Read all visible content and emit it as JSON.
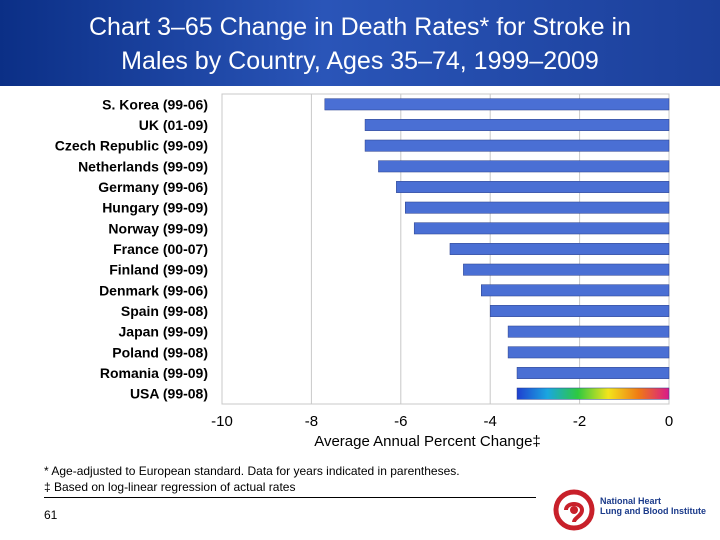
{
  "title": {
    "line1": "Chart 3–65 Change in Death Rates* for Stroke in",
    "line2": "Males by Country, Ages 35–74, 1999–2009"
  },
  "chart_data": {
    "type": "bar",
    "orientation": "horizontal",
    "categories": [
      "S. Korea (99-06)",
      "UK (01-09)",
      "Czech Republic (99-09)",
      "Netherlands (99-09)",
      "Germany (99-06)",
      "Hungary (99-09)",
      "Norway (99-09)",
      "France (00-07)",
      "Finland (99-09)",
      "Denmark (99-06)",
      "Spain (99-08)",
      "Japan (99-09)",
      "Poland (99-08)",
      "Romania (99-09)",
      "USA (99-08)"
    ],
    "values": [
      -7.7,
      -6.8,
      -6.8,
      -6.5,
      -6.1,
      -5.9,
      -5.7,
      -4.9,
      -4.6,
      -4.2,
      -4.0,
      -3.6,
      -3.6,
      -3.4,
      -3.4
    ],
    "xlabel": "Average Annual Percent Change‡",
    "xlim": [
      -10,
      0
    ],
    "xticks": [
      "-10",
      "-8",
      "-6",
      "-4",
      "-2",
      "0"
    ],
    "grid": "vertical",
    "highlight_series": "USA (99-08)",
    "colors": {
      "bar": "#4a6fd4",
      "bar_highlight": "rainbow",
      "grid": "#c8c8c8"
    }
  },
  "footnotes": {
    "line1": "* Age-adjusted to European standard. Data for years indicated in parentheses.",
    "line2": "‡ Based on log-linear regression of actual rates"
  },
  "page_number": "61",
  "logo": {
    "line1": "National Heart",
    "line2": "Lung and Blood Institute"
  }
}
